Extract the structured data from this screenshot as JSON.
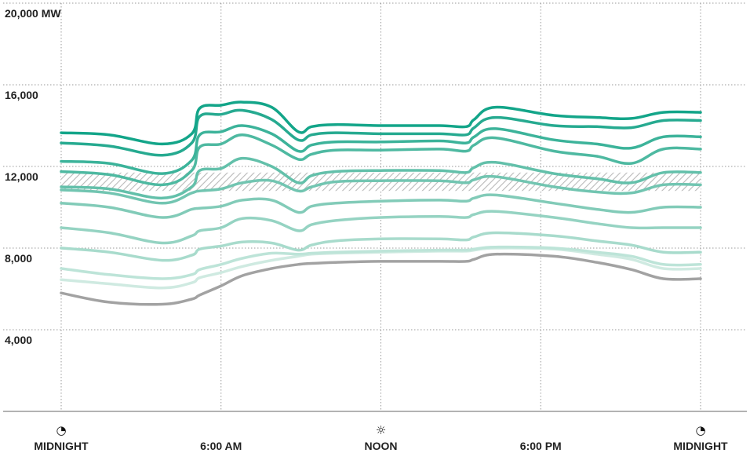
{
  "chart_data": {
    "type": "line",
    "ylabel_unit": "MW",
    "ylim": [
      0,
      20000
    ],
    "yticks": [
      {
        "value": 20000,
        "label": "20,000 MW"
      },
      {
        "value": 16000,
        "label": "16,000"
      },
      {
        "value": 12000,
        "label": "12,000"
      },
      {
        "value": 8000,
        "label": "8,000"
      },
      {
        "value": 4000,
        "label": "4,000"
      }
    ],
    "xlim": [
      0,
      24
    ],
    "xticks": [
      {
        "hour": 0,
        "label": "MIDNIGHT",
        "icon": "moon-icon",
        "glyph": "◔"
      },
      {
        "hour": 6,
        "label": "6:00 AM",
        "icon": "",
        "glyph": ""
      },
      {
        "hour": 12,
        "label": "NOON",
        "icon": "sun-icon",
        "glyph": "☼"
      },
      {
        "hour": 18,
        "label": "6:00 PM",
        "icon": "",
        "glyph": ""
      },
      {
        "hour": 24,
        "label": "MIDNIGHT",
        "icon": "moon-icon",
        "glyph": "◔"
      }
    ],
    "band": {
      "low": 10800,
      "high": 11700,
      "pattern": "diagonal-hatch"
    },
    "x": [
      0,
      1.8,
      3.8,
      4.9,
      5.2,
      6.0,
      6.8,
      7.9,
      8.9,
      9.4,
      10.3,
      12.0,
      14.2,
      15.2,
      15.5,
      16.3,
      18.5,
      20.1,
      21.4,
      22.6,
      24.0
    ],
    "series": [
      {
        "color": "#13a589",
        "values": [
          13650,
          13550,
          13100,
          13600,
          14850,
          15000,
          15150,
          14900,
          13700,
          13950,
          14050,
          14000,
          14000,
          13950,
          14300,
          14900,
          14500,
          14400,
          14350,
          14650,
          14650
        ]
      },
      {
        "color": "#26aa90",
        "values": [
          13150,
          13000,
          12550,
          13150,
          14450,
          14550,
          14750,
          14300,
          13300,
          13550,
          13650,
          13600,
          13600,
          13550,
          13900,
          14400,
          14000,
          13950,
          13900,
          14250,
          14250
        ]
      },
      {
        "color": "#3cb39a",
        "values": [
          12250,
          12150,
          11650,
          12300,
          13550,
          13700,
          14000,
          13600,
          12750,
          13050,
          13200,
          13200,
          13250,
          13150,
          13450,
          13850,
          13300,
          13100,
          12900,
          13450,
          13450
        ]
      },
      {
        "color": "#4eb9a1",
        "values": [
          11750,
          11600,
          11100,
          11800,
          12950,
          13100,
          13550,
          13050,
          12350,
          12600,
          12800,
          12800,
          12850,
          12750,
          13050,
          13400,
          12750,
          12500,
          12150,
          12850,
          12850
        ]
      },
      {
        "color": "#63c0aa",
        "values": [
          11000,
          10900,
          10450,
          11000,
          11800,
          11900,
          12400,
          12000,
          11200,
          11550,
          11750,
          11800,
          11800,
          11700,
          11950,
          12200,
          11650,
          11400,
          11200,
          11700,
          11700
        ]
      },
      {
        "color": "#72c5b1",
        "values": [
          10850,
          10700,
          10200,
          10700,
          10800,
          10900,
          11200,
          11300,
          10800,
          11000,
          11250,
          11300,
          11300,
          11200,
          11350,
          11500,
          11000,
          10750,
          10700,
          11100,
          11100
        ]
      },
      {
        "color": "#82cbb8",
        "values": [
          10200,
          10000,
          9500,
          9900,
          9950,
          10050,
          10350,
          10350,
          9750,
          10050,
          10200,
          10300,
          10350,
          10300,
          10450,
          10600,
          10200,
          9900,
          9750,
          10000,
          10000
        ]
      },
      {
        "color": "#95d3c2",
        "values": [
          9000,
          8750,
          8250,
          8600,
          8850,
          9000,
          9450,
          9350,
          8850,
          9150,
          9350,
          9500,
          9550,
          9500,
          9650,
          9800,
          9500,
          9200,
          9000,
          9000,
          9000
        ]
      },
      {
        "color": "#a8dbcc",
        "values": [
          8000,
          7800,
          7400,
          7650,
          7950,
          8100,
          8300,
          8250,
          7900,
          8150,
          8350,
          8450,
          8450,
          8400,
          8550,
          8750,
          8600,
          8350,
          8150,
          7800,
          7800
        ]
      },
      {
        "color": "#bde4d8",
        "values": [
          7000,
          6700,
          6500,
          6700,
          6950,
          7200,
          7500,
          7750,
          7700,
          7750,
          7800,
          7850,
          7900,
          7900,
          7950,
          8050,
          8000,
          7800,
          7600,
          7200,
          7200
        ]
      },
      {
        "color": "#cfeae1",
        "values": [
          6450,
          6250,
          6050,
          6300,
          6550,
          6800,
          7100,
          7400,
          7600,
          7700,
          7750,
          7800,
          7850,
          7850,
          7900,
          8000,
          7950,
          7700,
          7450,
          7000,
          7000
        ]
      },
      {
        "color": "#a2a2a2",
        "values": [
          5800,
          5350,
          5250,
          5500,
          5700,
          6150,
          6650,
          7000,
          7200,
          7250,
          7300,
          7350,
          7350,
          7350,
          7450,
          7700,
          7600,
          7300,
          6950,
          6500,
          6500
        ]
      }
    ]
  }
}
